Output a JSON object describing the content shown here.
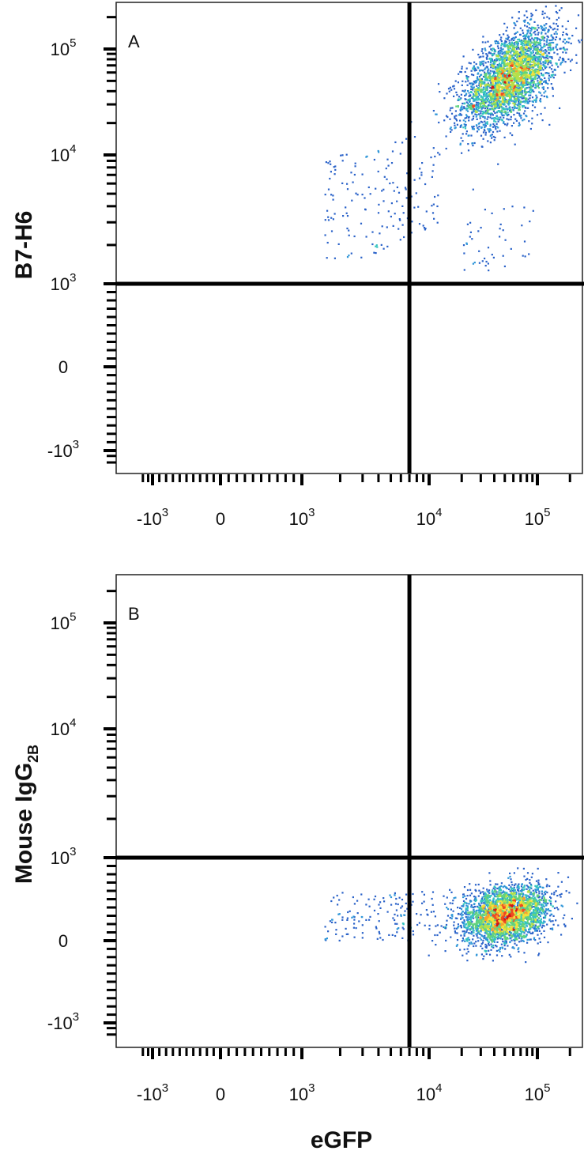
{
  "chart_data": [
    {
      "type": "scatter",
      "panel_label": "A",
      "xlabel": "",
      "ylabel": "B7-H6",
      "x_scale": "biexponential",
      "y_scale": "biexponential",
      "xlim": [
        -1500,
        200000
      ],
      "ylim": [
        -1500,
        200000
      ],
      "x_ticks": [
        {
          "value": -1000,
          "base": "-10",
          "exp": "3"
        },
        {
          "value": 0,
          "base": "0",
          "exp": ""
        },
        {
          "value": 1000,
          "base": "10",
          "exp": "3"
        },
        {
          "value": 10000,
          "base": "10",
          "exp": "4"
        },
        {
          "value": 100000,
          "base": "10",
          "exp": "5"
        }
      ],
      "y_ticks": [
        {
          "value": -1000,
          "base": "-10",
          "exp": "3"
        },
        {
          "value": 0,
          "base": "0",
          "exp": ""
        },
        {
          "value": 1000,
          "base": "10",
          "exp": "3"
        },
        {
          "value": 10000,
          "base": "10",
          "exp": "4"
        },
        {
          "value": 100000,
          "base": "10",
          "exp": "5"
        }
      ],
      "quadrant_gate": {
        "x": 7000,
        "y": 1000
      },
      "populations": [
        {
          "name": "main",
          "x_center": 55000,
          "y_center": 55000,
          "x_spread_log": 0.22,
          "y_spread_log": 0.23,
          "correlation": 0.55,
          "count": 3200
        },
        {
          "name": "tail",
          "x_range": [
            1500,
            12000
          ],
          "y_range": [
            1300,
            18000
          ],
          "count": 160
        },
        {
          "name": "lower-tail",
          "x_range": [
            20000,
            90000
          ],
          "y_range": [
            1100,
            5000
          ],
          "count": 45
        }
      ]
    },
    {
      "type": "scatter",
      "panel_label": "B",
      "xlabel": "eGFP",
      "ylabel": "Mouse IgG",
      "ylabel_sub": "2B",
      "x_scale": "biexponential",
      "y_scale": "biexponential",
      "xlim": [
        -1500,
        200000
      ],
      "ylim": [
        -1500,
        200000
      ],
      "x_ticks": [
        {
          "value": -1000,
          "base": "-10",
          "exp": "3"
        },
        {
          "value": 0,
          "base": "0",
          "exp": ""
        },
        {
          "value": 1000,
          "base": "10",
          "exp": "3"
        },
        {
          "value": 10000,
          "base": "10",
          "exp": "4"
        },
        {
          "value": 100000,
          "base": "10",
          "exp": "5"
        }
      ],
      "y_ticks": [
        {
          "value": -1000,
          "base": "-10",
          "exp": "3"
        },
        {
          "value": 0,
          "base": "0",
          "exp": ""
        },
        {
          "value": 1000,
          "base": "10",
          "exp": "3"
        },
        {
          "value": 10000,
          "base": "10",
          "exp": "4"
        },
        {
          "value": 100000,
          "base": "10",
          "exp": "5"
        }
      ],
      "quadrant_gate": {
        "x": 7000,
        "y": 1000
      },
      "populations": [
        {
          "name": "main",
          "x_center": 50000,
          "y_center": 320,
          "x_spread_log": 0.2,
          "y_spread": 170,
          "correlation": 0.2,
          "count": 3000
        },
        {
          "name": "tail",
          "x_range": [
            1500,
            12000
          ],
          "y_range": [
            0,
            600
          ],
          "count": 150
        }
      ]
    }
  ]
}
